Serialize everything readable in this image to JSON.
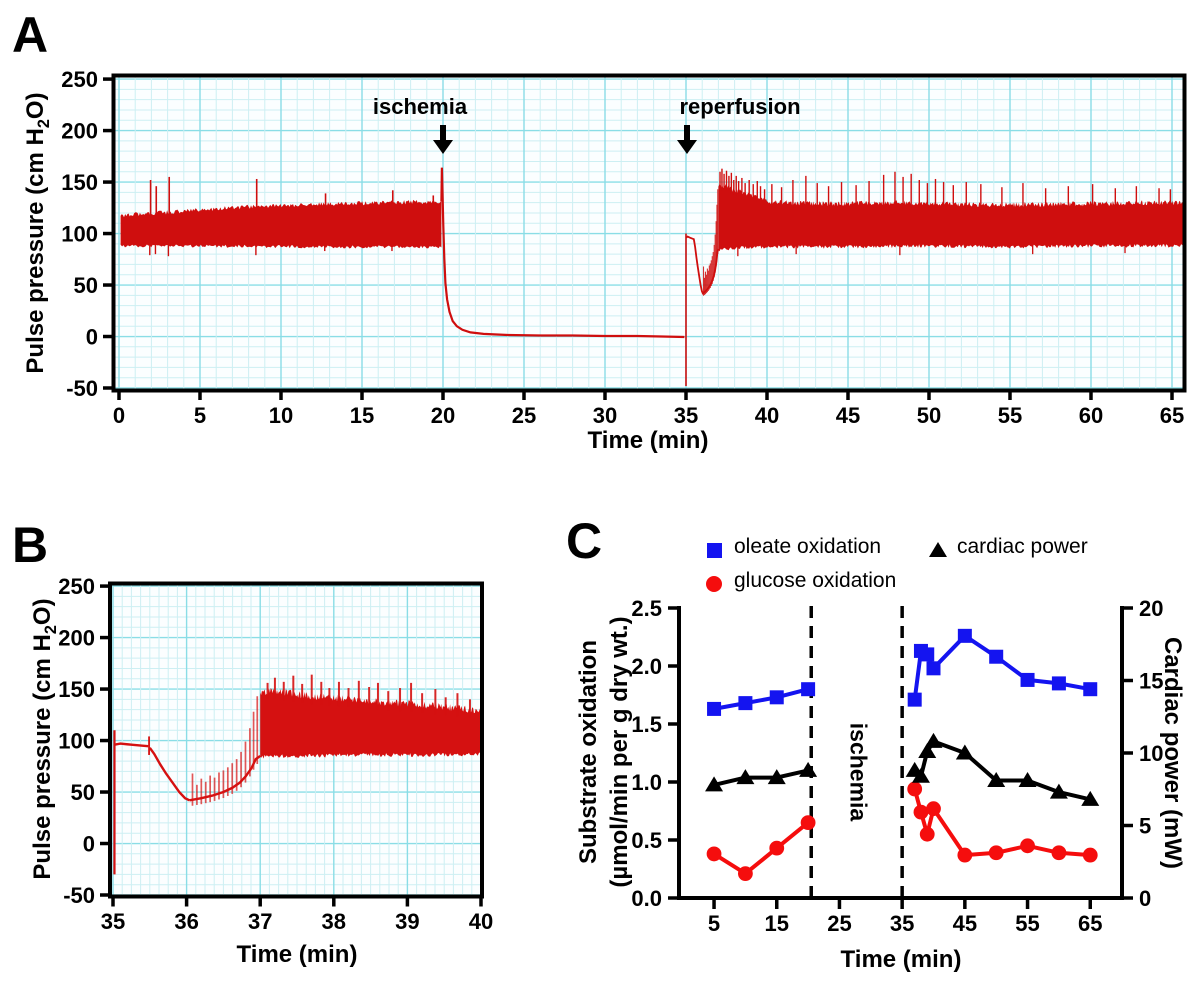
{
  "labels": {
    "letter_a": "A",
    "letter_b": "B",
    "letter_c": "C",
    "pp_pre": "Pulse pressure (cm H",
    "pp_sub": "2",
    "pp_post": "O)",
    "a_ischemia": "ischemia",
    "a_reperfusion": "reperfusion",
    "c_left1": "Substrate oxidation",
    "c_left2": "(µmol/min per g dry wt.)",
    "c_ischemia": "ischemia"
  },
  "legend": [
    {
      "label": "oleate oxidation",
      "marker": "square",
      "color": "#1414f0"
    },
    {
      "label": "glucose oxidation",
      "marker": "circle",
      "color": "#f50d0d"
    },
    {
      "label": "cardiac power",
      "marker": "triangle",
      "color": "#000000"
    }
  ],
  "chart_data": [
    {
      "panel": "A",
      "type": "line",
      "title": "",
      "xlabel": "Time (min)",
      "ylabel": "Pulse pressure (cm H2O)",
      "xlim": [
        0,
        65
      ],
      "ylim": [
        -50,
        250
      ],
      "xticks": [
        0,
        5,
        10,
        15,
        20,
        25,
        30,
        35,
        40,
        45,
        50,
        55,
        60,
        65
      ],
      "yticks": [
        -50,
        0,
        50,
        100,
        150,
        200,
        250
      ],
      "grid": true,
      "trace_color": "#cf0e0e",
      "grid_minor_color": "#cdeff3",
      "grid_major_color": "#8adde6",
      "events": {
        "ischemia_t": 20,
        "reperfusion_t": 35
      },
      "baseline_band_top": [
        [
          0.1,
          117
        ],
        [
          1,
          119
        ],
        [
          2.5,
          120
        ],
        [
          4,
          122
        ],
        [
          6,
          124
        ],
        [
          8,
          126
        ],
        [
          10,
          127
        ],
        [
          12,
          128
        ],
        [
          14,
          129
        ],
        [
          16,
          130
        ],
        [
          18,
          130.5
        ],
        [
          19.9,
          131
        ]
      ],
      "baseline_band_bottom": [
        [
          0.1,
          88
        ],
        [
          4,
          88
        ],
        [
          8,
          87.5
        ],
        [
          12,
          87
        ],
        [
          16,
          87
        ],
        [
          19.9,
          87
        ]
      ],
      "baseline_spikes_up": [
        [
          1.95,
          152
        ],
        [
          2.3,
          146
        ],
        [
          3.1,
          155
        ],
        [
          8.5,
          153
        ],
        [
          12.75,
          139
        ],
        [
          16.9,
          142
        ],
        [
          19.4,
          137
        ]
      ],
      "baseline_spikes_down": [
        [
          1.9,
          79
        ],
        [
          2.25,
          80
        ],
        [
          3.05,
          78
        ],
        [
          8.45,
          79
        ],
        [
          12.7,
          83
        ],
        [
          16.85,
          83
        ]
      ],
      "ischemia_drop_line": [
        [
          19.9,
          131
        ],
        [
          19.93,
          164
        ],
        [
          19.97,
          140
        ],
        [
          20.02,
          108
        ],
        [
          20.08,
          76
        ],
        [
          20.15,
          52
        ],
        [
          20.25,
          36
        ],
        [
          20.4,
          24
        ],
        [
          20.6,
          15
        ],
        [
          20.85,
          10
        ],
        [
          21.2,
          6.5
        ],
        [
          21.7,
          4
        ],
        [
          22.5,
          2.5
        ],
        [
          24,
          1.5
        ],
        [
          26,
          1
        ],
        [
          28,
          1
        ],
        [
          30,
          0.5
        ],
        [
          32,
          0.5
        ],
        [
          33.5,
          0
        ],
        [
          34.9,
          -0.5
        ]
      ],
      "reperfusion_spike": [
        35.0,
        -48,
        100
      ],
      "recovered_band_top": [
        [
          37,
          147
        ],
        [
          37.4,
          146
        ],
        [
          38,
          142
        ],
        [
          38.6,
          139
        ],
        [
          39.2,
          136
        ],
        [
          40,
          131
        ],
        [
          41,
          130
        ],
        [
          43,
          129
        ],
        [
          45,
          129
        ],
        [
          47,
          130
        ],
        [
          49,
          130
        ],
        [
          51,
          129
        ],
        [
          53,
          128
        ],
        [
          55,
          128
        ],
        [
          57,
          128
        ],
        [
          59,
          129
        ],
        [
          61,
          129
        ],
        [
          63,
          130
        ],
        [
          65.7,
          130
        ]
      ],
      "recovered_band_bottom": [
        [
          37,
          84
        ],
        [
          38,
          86
        ],
        [
          39,
          86
        ],
        [
          40,
          87
        ],
        [
          45,
          87
        ],
        [
          50,
          88
        ],
        [
          55,
          87
        ],
        [
          60,
          88
        ],
        [
          65.7,
          88
        ]
      ],
      "recovered_spikes_up": [
        [
          37.1,
          160
        ],
        [
          37.22,
          163
        ],
        [
          37.35,
          158
        ],
        [
          37.5,
          161
        ],
        [
          37.65,
          156
        ],
        [
          37.8,
          159
        ],
        [
          37.95,
          152
        ],
        [
          38.1,
          156
        ],
        [
          38.25,
          151
        ],
        [
          38.45,
          154
        ],
        [
          38.65,
          149
        ],
        [
          38.9,
          152
        ],
        [
          39.15,
          148
        ],
        [
          39.4,
          151
        ],
        [
          39.6,
          146
        ],
        [
          39.85,
          143
        ],
        [
          40.3,
          148
        ],
        [
          40.9,
          145
        ],
        [
          41.6,
          152
        ],
        [
          42.4,
          156
        ],
        [
          43.1,
          149
        ],
        [
          43.8,
          146
        ],
        [
          44.6,
          150
        ],
        [
          45.5,
          147
        ],
        [
          46.3,
          151
        ],
        [
          47.2,
          157
        ],
        [
          47.9,
          160
        ],
        [
          48.4,
          155
        ],
        [
          48.9,
          158
        ],
        [
          49.4,
          152
        ],
        [
          49.9,
          149
        ],
        [
          50.4,
          153
        ],
        [
          50.9,
          150
        ],
        [
          51.5,
          147
        ],
        [
          52.3,
          150
        ],
        [
          53.2,
          148
        ],
        [
          54.5,
          145
        ],
        [
          55.8,
          149
        ],
        [
          57.2,
          144
        ],
        [
          58.6,
          146
        ],
        [
          60.1,
          148
        ],
        [
          61.5,
          144
        ],
        [
          62.8,
          146
        ],
        [
          64.2,
          144
        ],
        [
          64.9,
          143
        ]
      ],
      "recovered_spikes_down": [
        [
          38.2,
          78
        ],
        [
          41.8,
          80
        ],
        [
          48.2,
          79
        ],
        [
          56.4,
          80
        ],
        [
          62.1,
          81
        ]
      ]
    },
    {
      "panel": "B",
      "type": "line",
      "title": "",
      "xlabel": "Time (min)",
      "ylabel": "Pulse pressure (cm H2O)",
      "xlim": [
        35,
        40
      ],
      "ylim": [
        -50,
        250
      ],
      "xticks": [
        35,
        36,
        37,
        38,
        39,
        40
      ],
      "yticks": [
        -50,
        0,
        50,
        100,
        150,
        200,
        250
      ],
      "grid": true,
      "trace_color": "#d51111",
      "start_spike": [
        35.02,
        -30,
        110
      ],
      "mean_line": [
        [
          35.02,
          96
        ],
        [
          35.1,
          97
        ],
        [
          35.25,
          96
        ],
        [
          35.4,
          95
        ],
        [
          35.48,
          94.5
        ]
      ],
      "notch_spike": [
        35.49,
        86,
        104
      ],
      "decline_line": [
        [
          35.5,
          93
        ],
        [
          35.56,
          87
        ],
        [
          35.64,
          77
        ],
        [
          35.72,
          68
        ],
        [
          35.82,
          58
        ],
        [
          35.9,
          50
        ],
        [
          35.98,
          44
        ],
        [
          36.04,
          42
        ]
      ],
      "rise_line": [
        [
          36.04,
          42
        ],
        [
          36.2,
          44
        ],
        [
          36.35,
          46.5
        ],
        [
          36.5,
          50
        ],
        [
          36.62,
          54
        ],
        [
          36.72,
          59
        ],
        [
          36.8,
          65
        ],
        [
          36.88,
          73
        ],
        [
          36.94,
          82
        ],
        [
          37,
          85
        ]
      ],
      "rise_spikes": [
        [
          36.08,
          68
        ],
        [
          36.14,
          57
        ],
        [
          36.2,
          63
        ],
        [
          36.26,
          60
        ],
        [
          36.32,
          66
        ],
        [
          36.38,
          64
        ],
        [
          36.44,
          69
        ],
        [
          36.5,
          71
        ],
        [
          36.56,
          74
        ],
        [
          36.62,
          78
        ],
        [
          36.68,
          82
        ],
        [
          36.74,
          89
        ],
        [
          36.8,
          99
        ],
        [
          36.86,
          112
        ],
        [
          36.91,
          128
        ],
        [
          36.96,
          143
        ]
      ],
      "band_top": [
        [
          37,
          146
        ],
        [
          37.15,
          149
        ],
        [
          37.3,
          147
        ],
        [
          37.5,
          145
        ],
        [
          37.7,
          143
        ],
        [
          37.9,
          142
        ],
        [
          38.1,
          141
        ],
        [
          38.4,
          139
        ],
        [
          38.7,
          137
        ],
        [
          39,
          136
        ],
        [
          39.3,
          134
        ],
        [
          39.6,
          132
        ],
        [
          40,
          129
        ]
      ],
      "band_bottom": [
        [
          37,
          84
        ],
        [
          37.3,
          85
        ],
        [
          37.7,
          85
        ],
        [
          38.1,
          86
        ],
        [
          38.6,
          86
        ],
        [
          39.1,
          86
        ],
        [
          39.6,
          86
        ],
        [
          40,
          87
        ]
      ],
      "band_spikes": [
        [
          37.1,
          156
        ],
        [
          37.2,
          161
        ],
        [
          37.32,
          157
        ],
        [
          37.45,
          163
        ],
        [
          37.57,
          155
        ],
        [
          37.7,
          164
        ],
        [
          37.83,
          157
        ],
        [
          37.94,
          151
        ],
        [
          38.07,
          157
        ],
        [
          38.2,
          151
        ],
        [
          38.34,
          158
        ],
        [
          38.48,
          152
        ],
        [
          38.6,
          156
        ],
        [
          38.74,
          148
        ],
        [
          38.9,
          151
        ],
        [
          39.05,
          156
        ],
        [
          39.2,
          146
        ],
        [
          39.38,
          150
        ],
        [
          39.52,
          142
        ],
        [
          39.68,
          146
        ],
        [
          39.85,
          140
        ]
      ]
    },
    {
      "panel": "C",
      "type": "scatter-line",
      "xlabel": "Time (min)",
      "ylabel_left": "Substrate oxidation (µmol/min per g dry wt.)",
      "ylabel_right": "Cardiac power (mW)",
      "xlim": [
        0,
        70
      ],
      "left_ylim": [
        0,
        2.5
      ],
      "right_ylim": [
        0,
        20
      ],
      "xticks": [
        5,
        15,
        25,
        35,
        45,
        55,
        65
      ],
      "left_yticks": [
        "0.0",
        "0.5",
        "1.0",
        "1.5",
        "2.0",
        "2.5"
      ],
      "right_yticks": [
        0,
        5,
        10,
        15,
        20
      ],
      "dashed_lines_t": [
        20.5,
        35
      ],
      "ischemia_label_t": 27.5,
      "x_pre": [
        5,
        10,
        15,
        20
      ],
      "x_post": [
        37,
        38,
        39,
        40,
        45,
        50,
        55,
        60,
        65
      ],
      "series": [
        {
          "name": "oleate oxidation",
          "axis": "left",
          "marker": "square",
          "color": "#1414f0",
          "pre": [
            1.63,
            1.68,
            1.73,
            1.8
          ],
          "post": [
            1.71,
            2.13,
            2.1,
            1.98,
            2.26,
            2.08,
            1.88,
            1.85,
            1.8
          ]
        },
        {
          "name": "glucose oxidation",
          "axis": "left",
          "marker": "circle",
          "color": "#f50d0d",
          "pre": [
            0.38,
            0.21,
            0.43,
            0.65
          ],
          "post": [
            0.94,
            0.74,
            0.55,
            0.77,
            0.37,
            0.39,
            0.45,
            0.39,
            0.37
          ]
        },
        {
          "name": "cardiac power",
          "axis": "right",
          "marker": "triangle",
          "color": "#000000",
          "pre": [
            7.8,
            8.3,
            8.3,
            8.8
          ],
          "post": [
            8.8,
            8.4,
            10.1,
            10.8,
            10.0,
            8.1,
            8.1,
            7.3,
            6.8
          ]
        }
      ]
    }
  ]
}
